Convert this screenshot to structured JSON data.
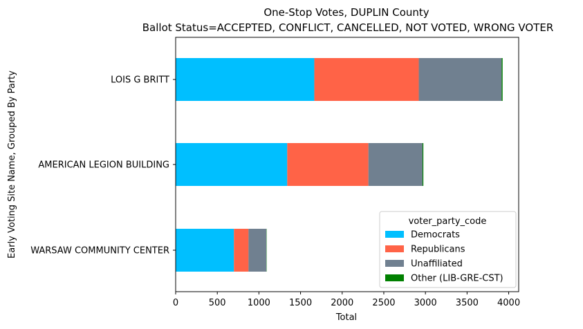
{
  "chart_data": {
    "type": "bar",
    "orientation": "horizontal",
    "stacked": true,
    "title": "One-Stop Votes, DUPLIN County",
    "subtitle": "Ballot Status=ACCEPTED, CONFLICT, CANCELLED, NOT VOTED, WRONG VOTER",
    "xlabel": "Total",
    "ylabel": "Early Voting Site Name, Grouped By Party",
    "xlim": [
      0,
      4120
    ],
    "xticks": [
      "0",
      "500",
      "1000",
      "1500",
      "2000",
      "2500",
      "3000",
      "3500",
      "4000"
    ],
    "xtick_values": [
      0,
      500,
      1000,
      1500,
      2000,
      2500,
      3000,
      3500,
      4000
    ],
    "categories": [
      "WARSAW COMMUNITY CENTER",
      "AMERICAN LEGION BUILDING",
      "LOIS G BRITT"
    ],
    "series": [
      {
        "name": "Democrats",
        "color": "#00bfff",
        "values": [
          700,
          1340,
          1665
        ]
      },
      {
        "name": "Republicans",
        "color": "#ff6347",
        "values": [
          175,
          975,
          1255
        ]
      },
      {
        "name": "Unaffiliated",
        "color": "#708090",
        "values": [
          215,
          650,
          995
        ]
      },
      {
        "name": "Other (LIB-GRE-CST)",
        "color": "#008000",
        "values": [
          3,
          10,
          12
        ]
      }
    ],
    "legend": {
      "title": "voter_party_code",
      "position": "lower-right"
    },
    "grid": false
  }
}
